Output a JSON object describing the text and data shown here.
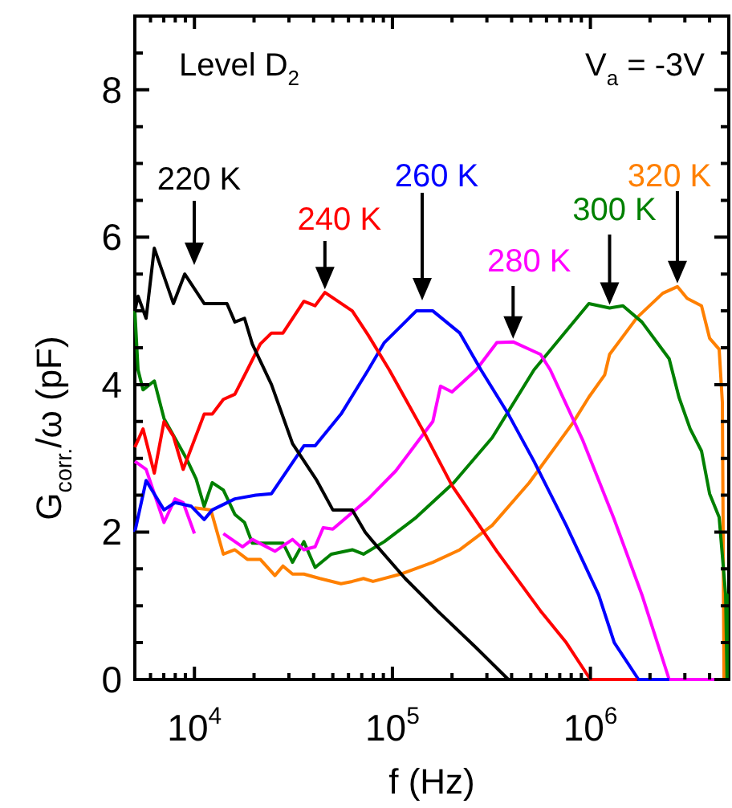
{
  "chart_data": {
    "type": "line",
    "xlabel": "f (Hz)",
    "ylabel": "G$_{corr.}$/ω (pF)",
    "log": "x",
    "grid": false,
    "legend": false,
    "xlim": [
      5000,
      5000000
    ],
    "ylim": [
      0,
      9
    ],
    "xticks": [
      {
        "value": 5000,
        "label": null
      },
      {
        "value": 6000,
        "label": null
      },
      {
        "value": 7000,
        "label": null
      },
      {
        "value": 8000,
        "label": null
      },
      {
        "value": 9000,
        "label": null
      },
      {
        "value": 10000,
        "label": "10$^{4}$"
      },
      {
        "value": 20000,
        "label": null
      },
      {
        "value": 30000,
        "label": null
      },
      {
        "value": 40000,
        "label": null
      },
      {
        "value": 50000,
        "label": null
      },
      {
        "value": 60000,
        "label": null
      },
      {
        "value": 70000,
        "label": null
      },
      {
        "value": 80000,
        "label": null
      },
      {
        "value": 90000,
        "label": null
      },
      {
        "value": 100000,
        "label": "10$^{5}$"
      },
      {
        "value": 200000,
        "label": null
      },
      {
        "value": 300000,
        "label": null
      },
      {
        "value": 400000,
        "label": null
      },
      {
        "value": 500000,
        "label": null
      },
      {
        "value": 600000,
        "label": null
      },
      {
        "value": 700000,
        "label": null
      },
      {
        "value": 800000,
        "label": null
      },
      {
        "value": 900000,
        "label": null
      },
      {
        "value": 1000000,
        "label": "10$^{6}$"
      },
      {
        "value": 2000000,
        "label": null
      },
      {
        "value": 3000000,
        "label": null
      },
      {
        "value": 4000000,
        "label": null
      }
    ],
    "yticks": [
      0,
      {
        "value": 0.5,
        "label": null
      },
      {
        "value": 1,
        "label": null
      },
      {
        "value": 1.5,
        "label": null
      },
      2,
      {
        "value": 2.5,
        "label": null
      },
      {
        "value": 3,
        "label": null
      },
      {
        "value": 3.5,
        "label": null
      },
      4,
      {
        "value": 4.5,
        "label": null
      },
      {
        "value": 5,
        "label": null
      },
      {
        "value": 5.5,
        "label": null
      },
      6,
      {
        "value": 6.5,
        "label": null
      },
      {
        "value": 7,
        "label": null
      },
      {
        "value": 7.5,
        "label": null
      },
      8,
      {
        "value": 8.5,
        "label": null
      }
    ],
    "annotations": [
      "Level D$_{2}$",
      "V$_{a}$ = -3V",
      "220 K",
      {
        "text": "240 K",
        "x": 45600,
        "y": 5.25
      },
      "260 K",
      {
        "text": "280 K",
        "x": 407000,
        "y": 4.58
      },
      {
        "text": "300 K",
        "x": 1250000,
        "y": 5.04
      },
      {
        "text": "320 K",
        "x": 2750000,
        "y": 5.33
      }
    ],
    "series": [
      {
        "color": "#000000",
        "x": [
          5000,
          5190,
          5700,
          6270,
          7830,
          8930,
          11200,
          14600,
          16000,
          17900,
          19600,
          24500,
          31300,
          41500,
          50000,
          62700,
          72800,
          79800,
          116000,
          169000,
          265000,
          385000
        ],
        "values": [
          5.0,
          5.2,
          4.9,
          5.85,
          5.1,
          5.5,
          5.1,
          5.1,
          4.85,
          4.9,
          4.55,
          4.0,
          3.2,
          2.7,
          2.3,
          2.3,
          2.0,
          1.87,
          1.37,
          0.93,
          0.43,
          0
        ]
      },
      {
        "color": "#ff0000",
        "x": [
          5000,
          5500,
          6270,
          7020,
          7830,
          8770,
          11200,
          12300,
          14000,
          16000,
          18500,
          21500,
          24500,
          28000,
          35700,
          40700,
          45600,
          62700,
          75500,
          96400,
          146000,
          200000,
          337000,
          560000,
          755000,
          1000000,
          1720000
        ],
        "values": [
          3.15,
          3.4,
          2.8,
          3.5,
          3.3,
          2.85,
          3.6,
          3.6,
          3.8,
          3.87,
          4.2,
          4.55,
          4.7,
          4.7,
          5.13,
          5.07,
          5.25,
          5.0,
          4.67,
          4.2,
          3.33,
          2.63,
          1.74,
          0.93,
          0.5,
          0,
          0
        ]
      },
      {
        "color": "#0000ff",
        "x": [
          5000,
          5700,
          7020,
          7980,
          9640,
          11200,
          12300,
          16000,
          20400,
          24500,
          35700,
          40700,
          55000,
          75500,
          91000,
          132000,
          160000,
          219000,
          280000,
          385000,
          519000,
          755000,
          1100000,
          1320000,
          1750000,
          2500000
        ],
        "values": [
          2.0,
          2.7,
          2.3,
          2.4,
          2.35,
          2.17,
          2.3,
          2.45,
          2.5,
          2.52,
          3.17,
          3.17,
          3.6,
          4.2,
          4.57,
          5.0,
          5.0,
          4.7,
          4.2,
          3.6,
          2.96,
          2.09,
          1.15,
          0.5,
          0,
          0
        ]
      },
      {
        "color": "#ff00ff",
        "x": [
          5000,
          5700,
          7020,
          7980,
          8770,
          10000,
          11700,
          14000,
          17500,
          19600,
          25500,
          31300,
          35700,
          40700,
          44700,
          50000,
          75500,
          104000,
          160000,
          175000,
          200000,
          265000,
          337000,
          407000,
          560000,
          627000,
          910000,
          1320000,
          1820000,
          2500000,
          4900000
        ],
        "values": [
          2.96,
          2.85,
          2.13,
          2.45,
          2.4,
          1.98,
          null,
          1.98,
          1.8,
          1.9,
          1.74,
          1.9,
          1.76,
          1.8,
          2.06,
          2.04,
          2.45,
          2.83,
          3.5,
          3.98,
          3.9,
          4.2,
          4.57,
          4.58,
          4.41,
          4.2,
          3.26,
          2.17,
          1.15,
          0,
          0
        ]
      },
      {
        "color": "#008000",
        "x": [
          5000,
          5190,
          5500,
          6270,
          7020,
          9100,
          10200,
          11200,
          12300,
          14000,
          16000,
          17900,
          19600,
          28000,
          31300,
          35700,
          40700,
          49100,
          62700,
          71400,
          91000,
          132000,
          204000,
          319000,
          519000,
          675000,
          982000,
          1250000,
          1460000,
          1820000,
          2500000,
          2800000,
          3190000,
          3640000,
          4000000,
          4470000,
          4820000,
          4900000
        ],
        "values": [
          5.0,
          4.2,
          3.93,
          4.05,
          3.54,
          3.0,
          2.72,
          2.35,
          2.67,
          2.57,
          2.24,
          2.13,
          1.85,
          1.85,
          1.59,
          1.87,
          1.52,
          1.7,
          1.76,
          1.7,
          1.87,
          2.2,
          2.67,
          3.28,
          4.2,
          4.57,
          5.1,
          5.04,
          5.07,
          4.85,
          4.35,
          3.83,
          3.4,
          3.1,
          2.52,
          2.2,
          1.15,
          0
        ]
      },
      {
        "color": "#ff8000",
        "x": [
          10000,
          12100,
          14000,
          16000,
          18500,
          21500,
          25500,
          28000,
          31300,
          35700,
          43000,
          55000,
          62700,
          71400,
          79800,
          110000,
          160000,
          219000,
          319000,
          491000,
          815000,
          982000,
          1180000,
          1250000,
          1720000,
          2320000,
          2750000,
          3080000,
          3640000,
          4000000,
          4470000,
          4640000,
          4730000
        ],
        "values": [
          2.33,
          2.3,
          1.7,
          1.76,
          1.63,
          1.63,
          1.41,
          1.54,
          1.43,
          1.43,
          1.37,
          1.3,
          1.33,
          1.37,
          1.33,
          1.43,
          1.59,
          1.76,
          2.09,
          2.67,
          3.48,
          3.83,
          4.13,
          4.41,
          4.91,
          5.24,
          5.33,
          5.17,
          5.07,
          4.63,
          4.48,
          3.76,
          0
        ]
      }
    ]
  }
}
